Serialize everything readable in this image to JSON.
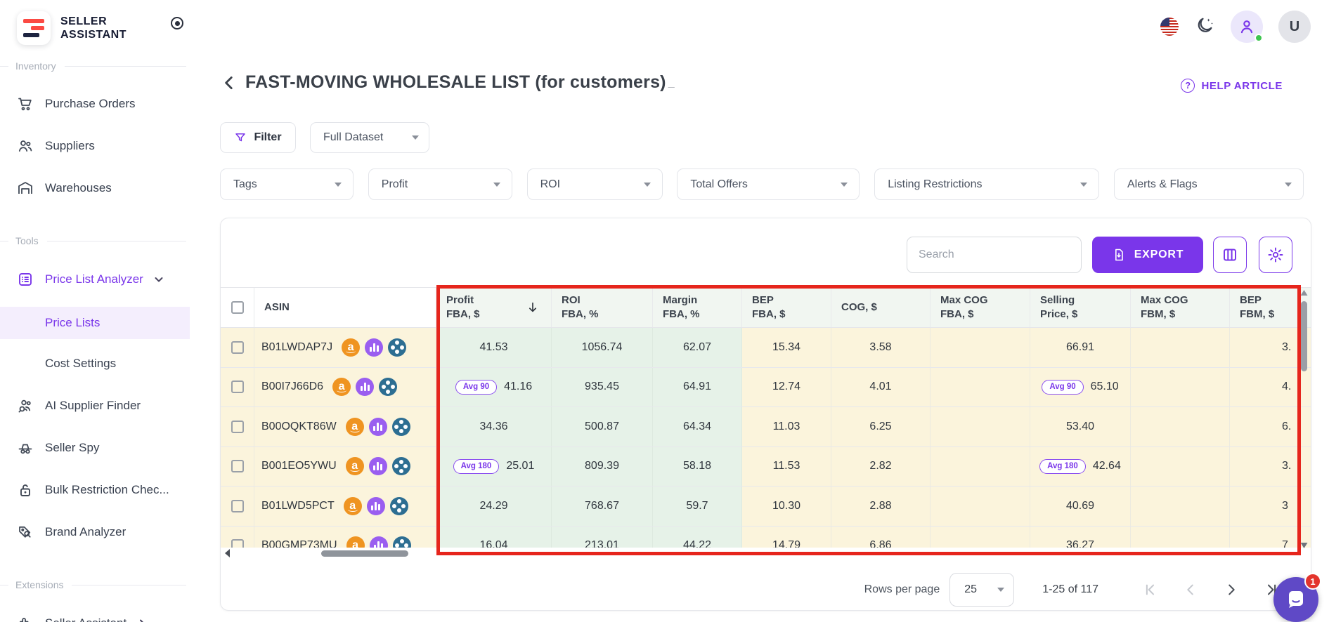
{
  "brand": {
    "line1": "SELLER",
    "line2": "ASSISTANT"
  },
  "topbar": {
    "avatar_letter": "U"
  },
  "sidebar": {
    "sections": [
      {
        "label": "Inventory",
        "items": [
          {
            "icon": "cart-icon",
            "label": "Purchase Orders"
          },
          {
            "icon": "people-icon",
            "label": "Suppliers"
          },
          {
            "icon": "warehouse-icon",
            "label": "Warehouses"
          }
        ]
      },
      {
        "label": "Tools",
        "items": [
          {
            "icon": "price-list-icon",
            "label": "Price List Analyzer",
            "active": true,
            "chevron": "down"
          },
          {
            "label": "Price Lists",
            "selected": true,
            "indent": true
          },
          {
            "label": "Cost Settings",
            "indent": true
          },
          {
            "icon": "supplier-finder-icon",
            "label": "AI Supplier Finder"
          },
          {
            "icon": "spy-icon",
            "label": "Seller Spy"
          },
          {
            "icon": "lock-icon",
            "label": "Bulk Restriction Chec..."
          },
          {
            "icon": "brand-tag-icon",
            "label": "Brand Analyzer"
          }
        ]
      },
      {
        "label": "Extensions",
        "items": [
          {
            "icon": "puzzle-icon",
            "label": "Seller Assistant",
            "chevron": "right"
          }
        ]
      }
    ]
  },
  "header": {
    "title": "FAST-MOVING WHOLESALE LIST (for customers)",
    "title_cursor": "_",
    "help_label": "HELP ARTICLE",
    "help_q": "?"
  },
  "filters": {
    "filter_label": "Filter",
    "dataset_value": "Full Dataset",
    "chips": [
      "Tags",
      "Profit",
      "ROI",
      "Total Offers",
      "Listing Restrictions",
      "Alerts & Flags"
    ],
    "chip_widths": [
      190,
      205,
      193,
      260,
      320,
      270
    ]
  },
  "toolbar": {
    "search_placeholder": "Search",
    "export_label": "EXPORT"
  },
  "table": {
    "columns": [
      {
        "id": "asin",
        "label": "ASIN",
        "single": true,
        "white": true
      },
      {
        "id": "profit",
        "line1": "Profit",
        "line2": "FBA, $",
        "sorted": true,
        "tint": "green"
      },
      {
        "id": "roi",
        "line1": "ROI",
        "line2": "FBA, %",
        "tint": "green"
      },
      {
        "id": "margin",
        "line1": "Margin",
        "line2": "FBA, %",
        "tint": "green"
      },
      {
        "id": "bep_fba",
        "line1": "BEP",
        "line2": "FBA, $",
        "tint": "cream"
      },
      {
        "id": "cog",
        "line1": "COG, $",
        "single": true,
        "tint": "cream"
      },
      {
        "id": "max_cog_fba",
        "line1": "Max COG",
        "line2": "FBA, $",
        "tint": "cream"
      },
      {
        "id": "selling",
        "line1": "Selling",
        "line2": "Price, $",
        "tint": "cream"
      },
      {
        "id": "max_cog_fbm",
        "line1": "Max COG",
        "line2": "FBM, $",
        "tint": "cream"
      },
      {
        "id": "bep_fbm",
        "line1": "BEP",
        "line2": "FBM, $",
        "tint": "cream"
      }
    ],
    "row_icons": [
      "amazon-icon",
      "chart-icon",
      "keepa-icon"
    ],
    "rows": [
      {
        "asin": "B01LWDAP7J",
        "profit": "41.53",
        "roi": "1056.74",
        "margin": "62.07",
        "bep_fba": "15.34",
        "cog": "3.58",
        "max_cog_fba": "",
        "selling": "66.91",
        "max_cog_fbm": "",
        "bep_fbm": "3."
      },
      {
        "asin": "B00I7J66D6",
        "profit_badge": "Avg 90",
        "profit": "41.16",
        "roi": "935.45",
        "margin": "64.91",
        "bep_fba": "12.74",
        "cog": "4.01",
        "max_cog_fba": "",
        "selling_badge": "Avg 90",
        "selling": "65.10",
        "max_cog_fbm": "",
        "bep_fbm": "4."
      },
      {
        "asin": "B00OQKT86W",
        "profit": "34.36",
        "roi": "500.87",
        "margin": "64.34",
        "bep_fba": "11.03",
        "cog": "6.25",
        "max_cog_fba": "",
        "selling": "53.40",
        "max_cog_fbm": "",
        "bep_fbm": "6."
      },
      {
        "asin": "B001EO5YWU",
        "profit_badge": "Avg 180",
        "profit": "25.01",
        "roi": "809.39",
        "margin": "58.18",
        "bep_fba": "11.53",
        "cog": "2.82",
        "max_cog_fba": "",
        "selling_badge": "Avg 180",
        "selling": "42.64",
        "max_cog_fbm": "",
        "bep_fbm": "3."
      },
      {
        "asin": "B01LWD5PCT",
        "profit": "24.29",
        "roi": "768.67",
        "margin": "59.7",
        "bep_fba": "10.30",
        "cog": "2.88",
        "max_cog_fba": "",
        "selling": "40.69",
        "max_cog_fbm": "",
        "bep_fbm": "3"
      },
      {
        "asin": "B00GMP73MU",
        "profit": "16.04",
        "roi": "213.01",
        "margin": "44.22",
        "bep_fba": "14.79",
        "cog": "6.86",
        "max_cog_fba": "",
        "selling": "36.27",
        "max_cog_fbm": "",
        "bep_fbm": "7"
      }
    ]
  },
  "pagination": {
    "rows_per_page_label": "Rows per page",
    "per_page": "25",
    "range": "1-25 of 117"
  },
  "chat": {
    "unread": "1"
  },
  "colors": {
    "accent": "#7a36ea",
    "annotation_red": "#e6251c",
    "row_cream": "#fbf4dc",
    "row_green": "#e6f2e8",
    "logo_red": "#fb4a43",
    "logo_navy": "#1d2340"
  }
}
